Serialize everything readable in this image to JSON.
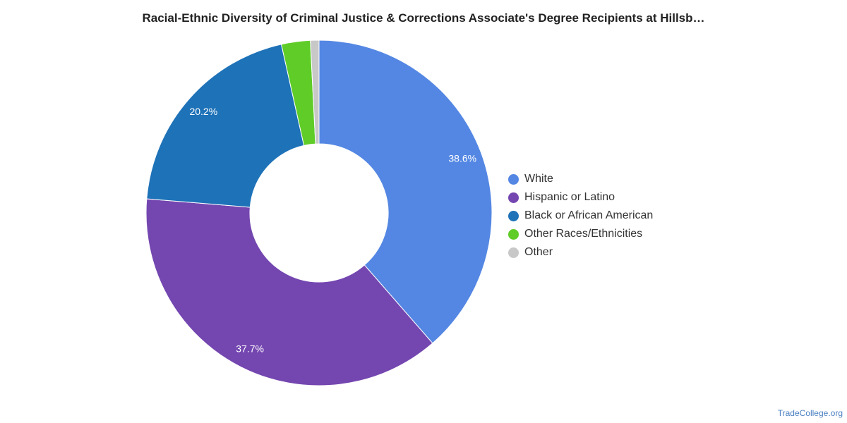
{
  "chart_data": {
    "type": "pie",
    "donut": true,
    "title": "Racial-Ethnic Diversity of Criminal Justice & Corrections Associate's Degree Recipients at Hillsb…",
    "legend_position": "right",
    "slices": [
      {
        "name": "White",
        "value": 38.6,
        "label": "38.6%",
        "color": "#5487e3"
      },
      {
        "name": "Hispanic or Latino",
        "value": 37.7,
        "label": "37.7%",
        "color": "#7446b0"
      },
      {
        "name": "Black or African American",
        "value": 20.2,
        "label": "20.2%",
        "color": "#1e72b8"
      },
      {
        "name": "Other Races/Ethnicities",
        "value": 2.7,
        "label": "",
        "color": "#5fcc27"
      },
      {
        "name": "Other",
        "value": 0.8,
        "label": "",
        "color": "#c8c8c8"
      }
    ]
  },
  "watermark": "TradeCollege.org"
}
